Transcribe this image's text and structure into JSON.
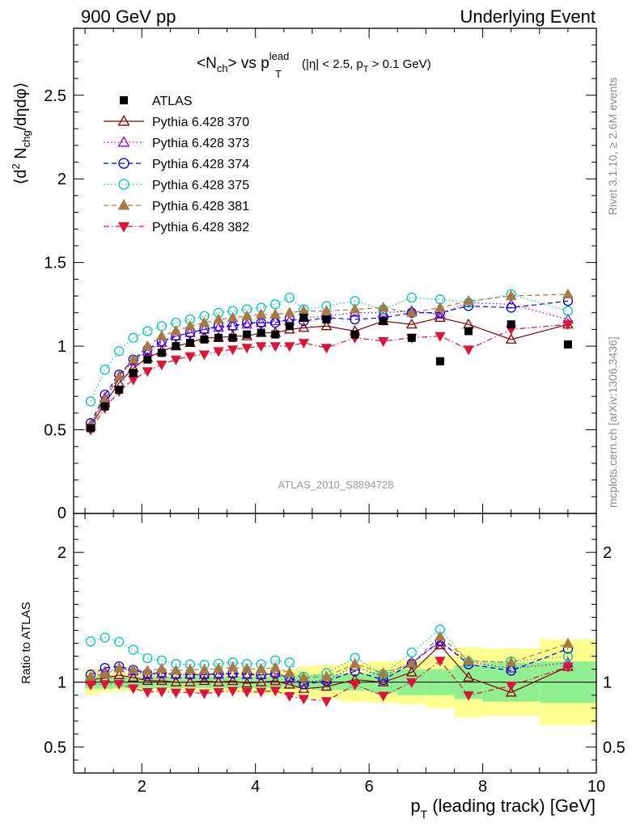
{
  "header": {
    "left": "900 GeV pp",
    "right": "Underlying Event"
  },
  "side": {
    "rivet": "Rivet 3.1.10, ≥ 2.6M events",
    "mcplots": "mcplots.cern.ch [arXiv:1306.3436]"
  },
  "plot_title": {
    "main": "<N",
    "main_sub": "ch",
    "main_tail": "> vs p",
    "lead_sup": "lead",
    "T_sub": "T",
    "cut": "(|η| < 2.5, p",
    "cut_sub": "T",
    "cut_tail": " > 0.1 GeV)"
  },
  "ylabel_main": {
    "a": "⟨d",
    "sup": "2",
    "b": " N",
    "sub": "chg",
    "c": "/dηdφ⟩"
  },
  "ylabel_ratio": "Ratio to ATLAS",
  "xlabel": {
    "p": "p",
    "sub": "T",
    "rest": " (leading track) [GeV]"
  },
  "watermark": "ATLAS_2010_S8894728",
  "colors": {
    "ATLAS": "#000000",
    "370": "#8b0000",
    "373": "#9400d3",
    "374": "#0000cd",
    "375": "#00c8b4",
    "381": "#a57a45",
    "382": "#dc143c",
    "band_inner": "#90f090",
    "band_outer": "#ffff90"
  },
  "chart_data": {
    "type": "scatter",
    "x_axis": {
      "range": [
        0.8,
        10.0
      ],
      "ticks": [
        "2",
        "4",
        "6",
        "8",
        "10"
      ]
    },
    "main_axis": {
      "range": [
        0,
        2.9
      ],
      "ticks": [
        "0.5",
        "1",
        "1.5",
        "2",
        "2.5"
      ],
      "zero_label": "0"
    },
    "ratio_axis": {
      "range": [
        0.3,
        2.3
      ],
      "ticks": [
        "0.5",
        "1",
        "2"
      ],
      "right_ticks": [
        "0.5",
        "1",
        "2"
      ]
    },
    "x": [
      1.1,
      1.35,
      1.6,
      1.85,
      2.1,
      2.35,
      2.6,
      2.85,
      3.1,
      3.35,
      3.6,
      3.85,
      4.1,
      4.35,
      4.6,
      4.85,
      5.25,
      5.75,
      6.25,
      6.75,
      7.25,
      7.75,
      8.5,
      9.5
    ],
    "bins": [
      [
        1.0,
        1.25
      ],
      [
        1.25,
        1.5
      ],
      [
        1.5,
        1.75
      ],
      [
        1.75,
        2.0
      ],
      [
        2.0,
        2.25
      ],
      [
        2.25,
        2.5
      ],
      [
        2.5,
        2.75
      ],
      [
        2.75,
        3.0
      ],
      [
        3.0,
        3.25
      ],
      [
        3.25,
        3.5
      ],
      [
        3.5,
        3.75
      ],
      [
        3.75,
        4.0
      ],
      [
        4.0,
        4.25
      ],
      [
        4.25,
        4.5
      ],
      [
        4.5,
        4.75
      ],
      [
        4.75,
        5.0
      ],
      [
        5.0,
        5.5
      ],
      [
        5.5,
        6.0
      ],
      [
        6.0,
        6.5
      ],
      [
        6.5,
        7.0
      ],
      [
        7.0,
        7.5
      ],
      [
        7.5,
        8.0
      ],
      [
        8.0,
        9.0
      ],
      [
        9.0,
        10.0
      ]
    ],
    "band_inner": [
      0.05,
      0.05,
      0.045,
      0.045,
      0.045,
      0.045,
      0.045,
      0.045,
      0.045,
      0.045,
      0.045,
      0.045,
      0.045,
      0.05,
      0.05,
      0.05,
      0.06,
      0.065,
      0.08,
      0.1,
      0.1,
      0.13,
      0.15,
      0.16
    ],
    "band_outer": [
      0.1,
      0.075,
      0.07,
      0.07,
      0.07,
      0.07,
      0.07,
      0.07,
      0.07,
      0.075,
      0.08,
      0.085,
      0.09,
      0.095,
      0.1,
      0.12,
      0.13,
      0.15,
      0.16,
      0.17,
      0.2,
      0.27,
      0.26,
      0.33
    ],
    "series": [
      {
        "name": "ATLAS",
        "key": "ATLAS",
        "marker": "square",
        "line": "none",
        "values": [
          0.51,
          0.64,
          0.74,
          0.84,
          0.92,
          0.96,
          1.0,
          1.02,
          1.04,
          1.05,
          1.05,
          1.07,
          1.08,
          1.07,
          1.12,
          1.17,
          1.16,
          1.07,
          1.15,
          1.05,
          0.91,
          1.09,
          1.13,
          1.01
        ]
      },
      {
        "name": "Pythia 6.428 370",
        "key": "370",
        "marker": "tri-open",
        "line": "solid",
        "values": [
          0.52,
          0.66,
          0.78,
          0.87,
          0.93,
          0.97,
          1.0,
          1.02,
          1.05,
          1.05,
          1.06,
          1.06,
          1.08,
          1.08,
          1.1,
          1.11,
          1.12,
          1.09,
          1.15,
          1.13,
          1.17,
          1.13,
          1.04,
          1.13
        ]
      },
      {
        "name": "Pythia 6.428 373",
        "key": "373",
        "marker": "tri-open",
        "line": "dotted",
        "values": [
          0.53,
          0.69,
          0.82,
          0.91,
          0.97,
          1.02,
          1.06,
          1.08,
          1.1,
          1.11,
          1.12,
          1.13,
          1.14,
          1.15,
          1.15,
          1.17,
          1.18,
          1.2,
          1.2,
          1.21,
          1.19,
          1.26,
          1.25,
          1.16
        ]
      },
      {
        "name": "Pythia 6.428 374",
        "key": "374",
        "marker": "circle-open",
        "line": "dashed",
        "values": [
          0.54,
          0.71,
          0.83,
          0.92,
          0.98,
          1.03,
          1.06,
          1.08,
          1.1,
          1.12,
          1.12,
          1.14,
          1.14,
          1.14,
          1.16,
          1.15,
          1.17,
          1.16,
          1.17,
          1.2,
          1.2,
          1.24,
          1.23,
          1.27
        ]
      },
      {
        "name": "Pythia 6.428 375",
        "key": "375",
        "marker": "circle-open",
        "line": "dotted",
        "values": [
          0.67,
          0.86,
          0.97,
          1.05,
          1.09,
          1.12,
          1.14,
          1.16,
          1.18,
          1.2,
          1.21,
          1.22,
          1.23,
          1.25,
          1.29,
          1.22,
          1.24,
          1.27,
          1.22,
          1.29,
          1.28,
          1.26,
          1.31,
          1.21
        ]
      },
      {
        "name": "Pythia 6.428 381",
        "key": "381",
        "marker": "tri-filled",
        "line": "dashed",
        "values": [
          0.53,
          0.68,
          0.82,
          0.92,
          1.0,
          1.06,
          1.09,
          1.12,
          1.14,
          1.16,
          1.17,
          1.18,
          1.19,
          1.19,
          1.2,
          1.21,
          1.21,
          1.22,
          1.23,
          1.2,
          1.23,
          1.27,
          1.3,
          1.31
        ]
      },
      {
        "name": "Pythia 6.428 382",
        "key": "382",
        "marker": "tri-down-filled",
        "line": "dashdot",
        "values": [
          0.5,
          0.63,
          0.73,
          0.8,
          0.85,
          0.89,
          0.92,
          0.94,
          0.95,
          0.97,
          0.98,
          0.99,
          1.0,
          1.0,
          1.0,
          1.02,
          0.99,
          1.05,
          1.03,
          1.05,
          1.06,
          0.98,
          1.1,
          1.13
        ]
      }
    ]
  }
}
